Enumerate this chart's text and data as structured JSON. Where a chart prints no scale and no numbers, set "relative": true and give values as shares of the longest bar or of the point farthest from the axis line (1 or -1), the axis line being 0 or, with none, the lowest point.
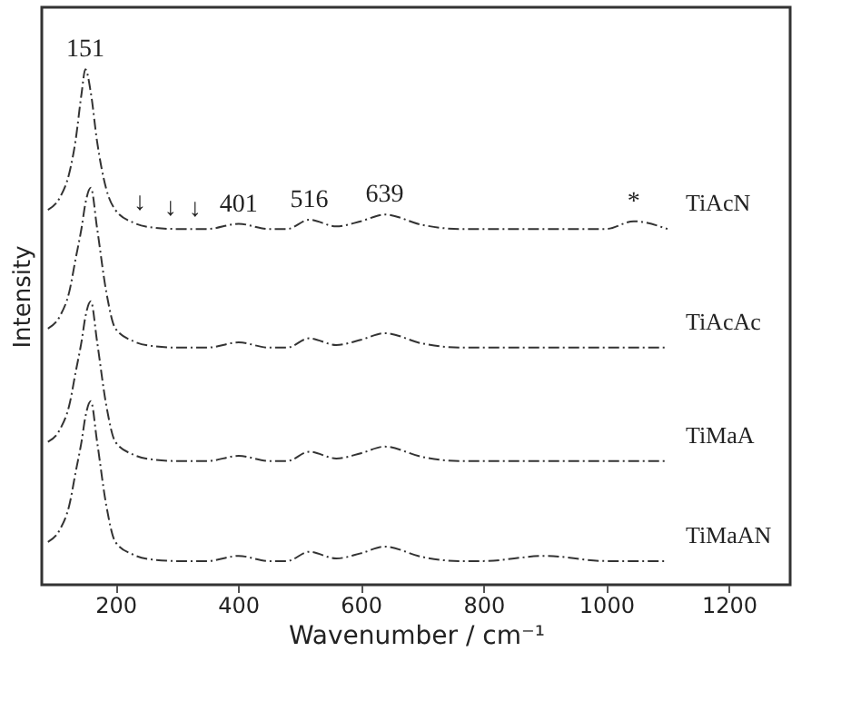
{
  "chart_data": {
    "type": "line",
    "relative": true,
    "xlabel": "Wavenumber / cm⁻¹",
    "ylabel": "Intensity",
    "xlim": [
      80,
      1300
    ],
    "xticks": [
      200,
      400,
      600,
      800,
      1000,
      1200
    ],
    "grid": false,
    "legend": false,
    "line_style": "dashed",
    "marker": "none",
    "x": [
      90,
      110,
      125,
      135,
      145,
      151,
      160,
      170,
      185,
      200,
      230,
      260,
      300,
      350,
      401,
      450,
      480,
      516,
      560,
      600,
      639,
      700,
      760,
      800,
      900,
      1000,
      1045,
      1100
    ],
    "series": [
      {
        "name": "TiAcN",
        "color": "#333333",
        "values": [
          0.727,
          0.752,
          0.799,
          0.861,
          0.954,
          1.0,
          0.954,
          0.861,
          0.768,
          0.727,
          0.702,
          0.693,
          0.69,
          0.69,
          0.7,
          0.69,
          0.69,
          0.708,
          0.695,
          0.705,
          0.718,
          0.698,
          0.69,
          0.69,
          0.69,
          0.69,
          0.705,
          0.69
        ]
      },
      {
        "name": "TiAcAc",
        "color": "#333333",
        "values": [
          0.497,
          0.522,
          0.569,
          0.631,
          0.693,
          0.739,
          0.77,
          0.693,
          0.569,
          0.497,
          0.472,
          0.463,
          0.46,
          0.46,
          0.47,
          0.46,
          0.46,
          0.478,
          0.465,
          0.475,
          0.488,
          0.468,
          0.46,
          0.46,
          0.46,
          0.46,
          0.46,
          0.46
        ]
      },
      {
        "name": "TiMaA",
        "color": "#333333",
        "values": [
          0.277,
          0.302,
          0.349,
          0.411,
          0.473,
          0.519,
          0.55,
          0.473,
          0.349,
          0.277,
          0.252,
          0.243,
          0.24,
          0.24,
          0.25,
          0.24,
          0.24,
          0.258,
          0.245,
          0.255,
          0.268,
          0.248,
          0.24,
          0.24,
          0.24,
          0.24,
          0.24,
          0.24
        ]
      },
      {
        "name": "TiMaAN",
        "color": "#333333",
        "values": [
          0.083,
          0.108,
          0.155,
          0.217,
          0.279,
          0.325,
          0.356,
          0.279,
          0.155,
          0.083,
          0.058,
          0.049,
          0.046,
          0.046,
          0.056,
          0.046,
          0.046,
          0.064,
          0.051,
          0.061,
          0.074,
          0.054,
          0.046,
          0.046,
          0.056,
          0.046,
          0.046,
          0.046
        ]
      }
    ],
    "annotations": [
      {
        "text": "151",
        "x": 151,
        "y": 1.0
      },
      {
        "text": "↓",
        "x": 240,
        "y": 0.702
      },
      {
        "text": "↓",
        "x": 290,
        "y": 0.692
      },
      {
        "text": "↓",
        "x": 330,
        "y": 0.69
      },
      {
        "text": "401",
        "x": 401,
        "y": 0.7
      },
      {
        "text": "516",
        "x": 516,
        "y": 0.708
      },
      {
        "text": "639",
        "x": 639,
        "y": 0.718
      },
      {
        "text": "*",
        "x": 1045,
        "y": 0.705
      }
    ]
  }
}
